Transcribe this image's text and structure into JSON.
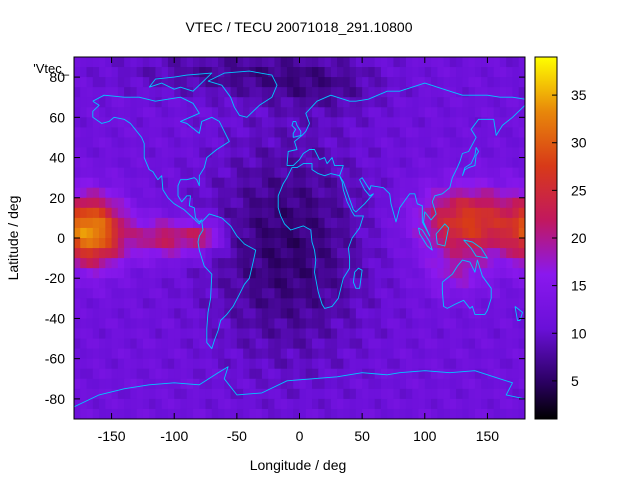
{
  "chart_data": {
    "type": "heatmap",
    "title": "VTEC / TECU 20071018_291.10800",
    "xlabel": "Longitude / deg",
    "ylabel": "Latitude / deg",
    "key_label": "'Vtec_",
    "xlim": [
      -180,
      180
    ],
    "ylim": [
      -90,
      90
    ],
    "x_ticks": [
      -150,
      -100,
      -50,
      0,
      50,
      100,
      150
    ],
    "y_ticks": [
      -80,
      -60,
      -40,
      -20,
      0,
      20,
      40,
      60,
      80
    ],
    "colorbar": {
      "min": 1,
      "max": 39,
      "ticks": [
        5,
        10,
        15,
        20,
        25,
        30,
        35
      ]
    },
    "features": [
      {
        "name": "equatorial-anomaly-west",
        "lon_center": -165,
        "lat_center": 3,
        "peak_tecu": 33
      },
      {
        "name": "equatorial-anomaly-east",
        "lon_center": 135,
        "lat_center": 8,
        "peak_tecu": 28
      },
      {
        "name": "night-minimum",
        "lon_center": -10,
        "lat_center": -5,
        "min_tecu": 6
      }
    ],
    "overlay": "coastlines"
  }
}
